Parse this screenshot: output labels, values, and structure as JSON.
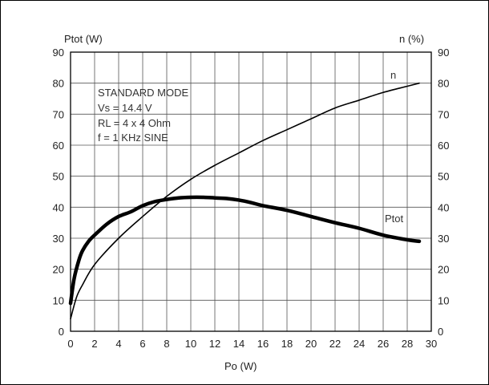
{
  "chart_data": {
    "type": "line",
    "title": "",
    "xlabel": "Po (W)",
    "ylabel": "Ptot (W)",
    "y2label": "n (%)",
    "xlim": [
      0,
      30
    ],
    "ylim": [
      0,
      90
    ],
    "y2lim": [
      0,
      90
    ],
    "xticks": [
      "0",
      "2",
      "4",
      "6",
      "8",
      "10",
      "12",
      "14",
      "16",
      "18",
      "20",
      "22",
      "24",
      "26",
      "28",
      "30"
    ],
    "yticks": [
      "0",
      "10",
      "20",
      "30",
      "40",
      "50",
      "60",
      "70",
      "80",
      "90"
    ],
    "y2ticks": [
      "0",
      "10",
      "20",
      "30",
      "40",
      "50",
      "60",
      "70",
      "80",
      "90"
    ],
    "grid": true,
    "conditions": [
      "STANDARD MODE",
      "Vs = 14.4 V",
      "RL = 4 x 4 Ohm",
      "f = 1 KHz SINE"
    ],
    "series": [
      {
        "name": "Ptot",
        "axis": "left",
        "color": "#000000",
        "x": [
          0,
          0.3,
          0.7,
          1,
          1.5,
          2,
          3,
          4,
          5,
          6,
          7,
          8,
          9,
          10,
          11,
          12,
          13,
          14,
          15,
          16,
          18,
          20,
          22,
          24,
          26,
          28,
          29
        ],
        "y": [
          9,
          17,
          23,
          26,
          29,
          31,
          34.5,
          37,
          38.5,
          40.5,
          41.8,
          42.5,
          43,
          43.2,
          43.2,
          43,
          42.8,
          42.3,
          41.5,
          40.5,
          39,
          37,
          35,
          33.2,
          31,
          29.5,
          29
        ]
      },
      {
        "name": "n",
        "axis": "right",
        "color": "#000000",
        "x": [
          0,
          0.5,
          1,
          2,
          4,
          6,
          8,
          10,
          12,
          14,
          16,
          18,
          20,
          22,
          24,
          26,
          28,
          29
        ],
        "y": [
          4,
          11,
          15,
          21.5,
          30,
          37,
          43.5,
          49,
          53.5,
          57.5,
          61.5,
          65,
          68.5,
          72,
          74.5,
          77,
          79,
          80
        ]
      }
    ]
  }
}
